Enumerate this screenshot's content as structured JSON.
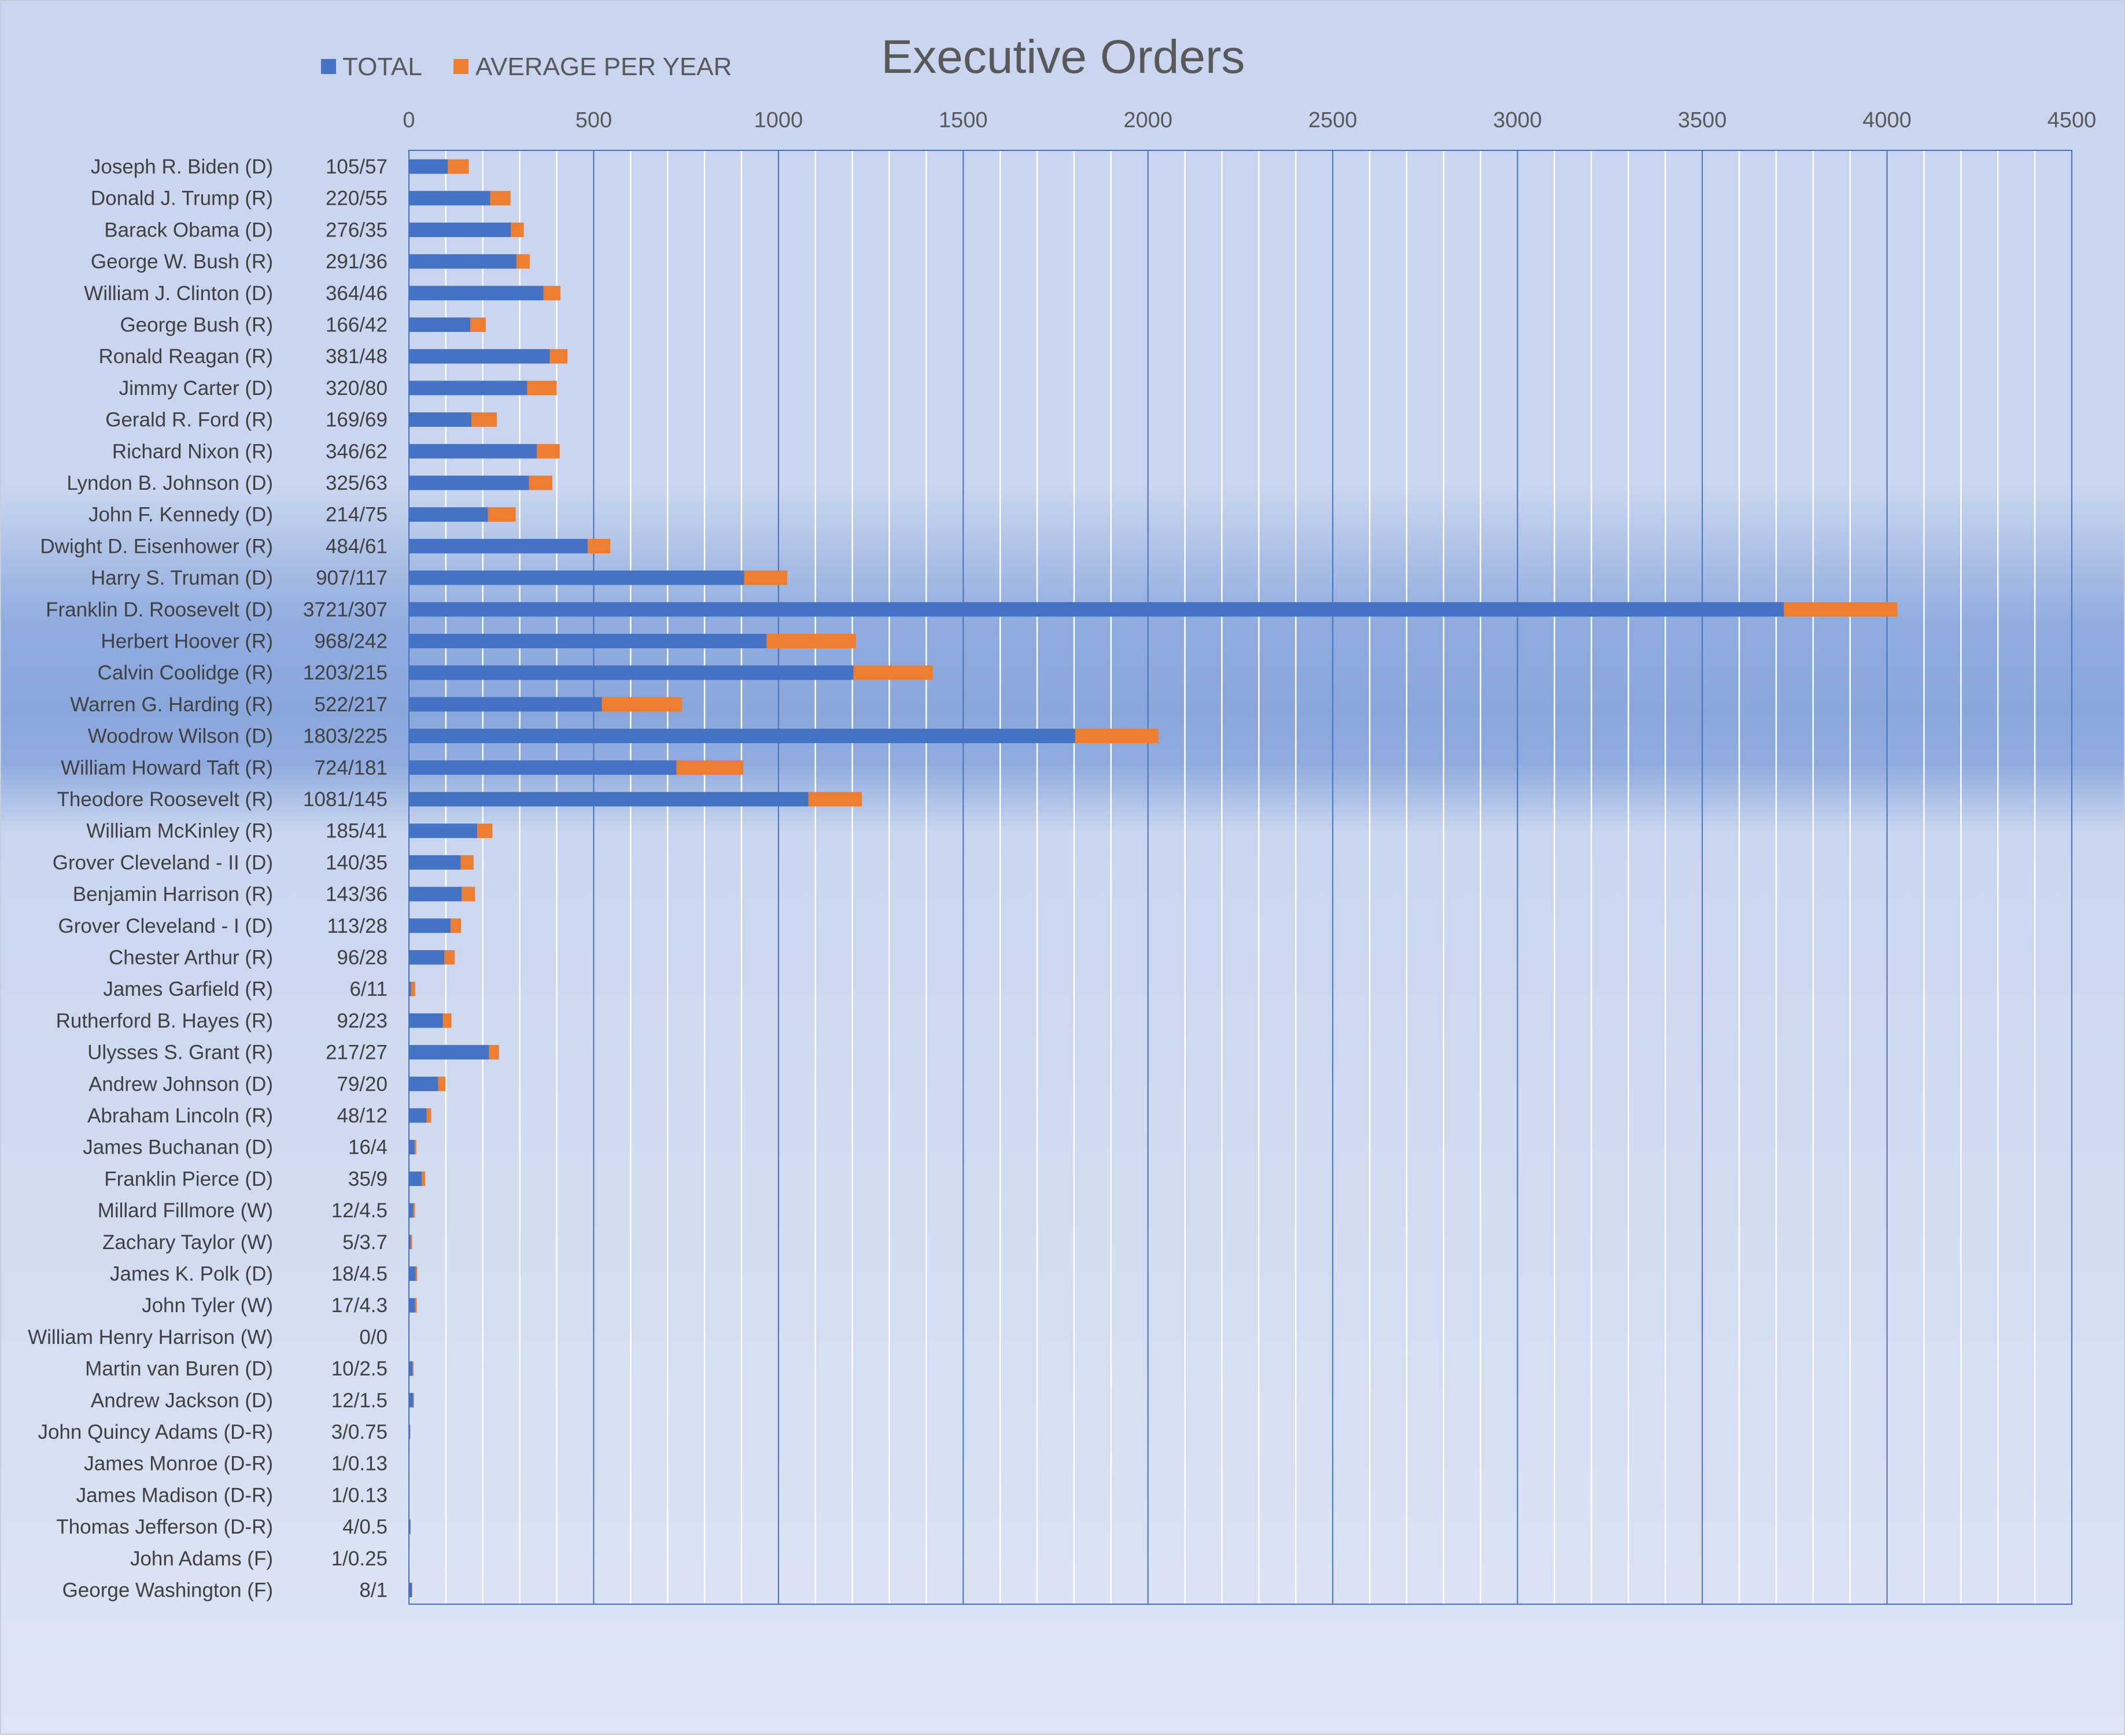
{
  "chart_data": {
    "type": "bar",
    "orientation": "horizontal",
    "stacked": true,
    "title": "Executive Orders",
    "legend": {
      "position": "top-left",
      "entries": [
        "TOTAL",
        "AVERAGE PER YEAR"
      ]
    },
    "colors": {
      "total": "#4472c4",
      "average": "#ed7d31",
      "grid_minor": "#ffffff",
      "grid_major": "#4472c4"
    },
    "xlim": [
      0,
      4500
    ],
    "xticks": [
      0,
      500,
      1000,
      1500,
      2000,
      2500,
      3000,
      3500,
      4000,
      4500
    ],
    "grid": true,
    "categories": [
      "Joseph R. Biden (D)",
      "Donald J. Trump (R)",
      "Barack Obama (D)",
      "George W. Bush (R)",
      "William J. Clinton (D)",
      "George Bush (R)",
      "Ronald Reagan (R)",
      "Jimmy Carter (D)",
      "Gerald R. Ford (R)",
      "Richard Nixon (R)",
      "Lyndon B. Johnson (D)",
      "John F. Kennedy (D)",
      "Dwight D. Eisenhower (R)",
      "Harry S. Truman (D)",
      "Franklin D. Roosevelt (D)",
      "Herbert Hoover (R)",
      "Calvin Coolidge (R)",
      "Warren G. Harding (R)",
      "Woodrow Wilson (D)",
      "William Howard Taft (R)",
      "Theodore Roosevelt (R)",
      "William McKinley (R)",
      "Grover Cleveland - II (D)",
      "Benjamin Harrison (R)",
      "Grover Cleveland - I (D)",
      "Chester Arthur (R)",
      "James Garfield (R)",
      "Rutherford B. Hayes (R)",
      "Ulysses S. Grant (R)",
      "Andrew Johnson (D)",
      "Abraham Lincoln (R)",
      "James Buchanan (D)",
      "Franklin Pierce (D)",
      "Millard Fillmore (W)",
      "Zachary Taylor (W)",
      "James K. Polk (D)",
      "John Tyler (W)",
      "William Henry Harrison (W)",
      "Martin van Buren (D)",
      "Andrew Jackson (D)",
      "John Quincy Adams (D-R)",
      "James Monroe (D-R)",
      "James Madison (D-R)",
      "Thomas Jefferson (D-R)",
      "John Adams (F)",
      "George Washington (F)"
    ],
    "row_labels": [
      "105/57",
      "220/55",
      "276/35",
      "291/36",
      "364/46",
      "166/42",
      "381/48",
      "320/80",
      "169/69",
      "346/62",
      "325/63",
      "214/75",
      "484/61",
      "907/117",
      "3721/307",
      "968/242",
      "1203/215",
      "522/217",
      "1803/225",
      "724/181",
      "1081/145",
      "185/41",
      "140/35",
      "143/36",
      "113/28",
      "96/28",
      "6/11",
      "92/23",
      "217/27",
      "79/20",
      "48/12",
      "16/4",
      "35/9",
      "12/4.5",
      "5/3.7",
      "18/4.5",
      "17/4.3",
      "0/0",
      "10/2.5",
      "12/1.5",
      "3/0.75",
      "1/0.13",
      "1/0.13",
      "4/0.5",
      "1/0.25",
      "8/1"
    ],
    "series": [
      {
        "name": "TOTAL",
        "values": [
          105,
          220,
          276,
          291,
          364,
          166,
          381,
          320,
          169,
          346,
          325,
          214,
          484,
          907,
          3721,
          968,
          1203,
          522,
          1803,
          724,
          1081,
          185,
          140,
          143,
          113,
          96,
          6,
          92,
          217,
          79,
          48,
          16,
          35,
          12,
          5,
          18,
          17,
          0,
          10,
          12,
          3,
          1,
          1,
          4,
          1,
          8
        ]
      },
      {
        "name": "AVERAGE PER YEAR",
        "values": [
          57,
          55,
          35,
          36,
          46,
          42,
          48,
          80,
          69,
          62,
          63,
          75,
          61,
          117,
          307,
          242,
          215,
          217,
          225,
          181,
          145,
          41,
          35,
          36,
          28,
          28,
          11,
          23,
          27,
          20,
          12,
          4,
          9,
          4.5,
          3.7,
          4.5,
          4.3,
          0,
          2.5,
          1.5,
          0.75,
          0.13,
          0.13,
          0.5,
          0.25,
          1
        ]
      }
    ]
  }
}
